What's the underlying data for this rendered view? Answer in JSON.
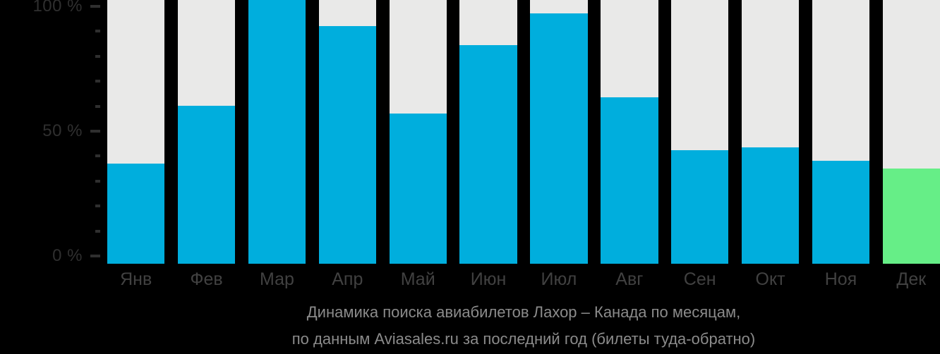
{
  "chart_data": {
    "type": "bar",
    "title": "Динамика поиска авиабилетов Лахор – Канада по месяцам,",
    "subtitle": "по данным Aviasales.ru за последний год (билеты туда-обратно)",
    "categories": [
      "Янв",
      "Фев",
      "Мар",
      "Апр",
      "Май",
      "Июн",
      "Июл",
      "Авг",
      "Сен",
      "Окт",
      "Ноя",
      "Дек"
    ],
    "values": [
      38,
      60,
      100,
      90,
      57,
      83,
      95,
      63,
      43,
      44,
      39,
      36
    ],
    "unit": "%",
    "ylabel": "",
    "xlabel": "",
    "ylim": [
      0,
      100
    ],
    "ytick_step": 10,
    "yticks_labeled": [
      100,
      50,
      0
    ],
    "ytick_suffix": " %",
    "highlight_index": 11,
    "grid": false,
    "legend": null,
    "colors": {
      "bar": "#00aedd",
      "highlight": "#66ee87",
      "track": "#e9e9e8",
      "background": "#000000",
      "axis_label": "#2f2f2f",
      "month_label": "#414141",
      "caption": "#8b8b8b"
    }
  }
}
